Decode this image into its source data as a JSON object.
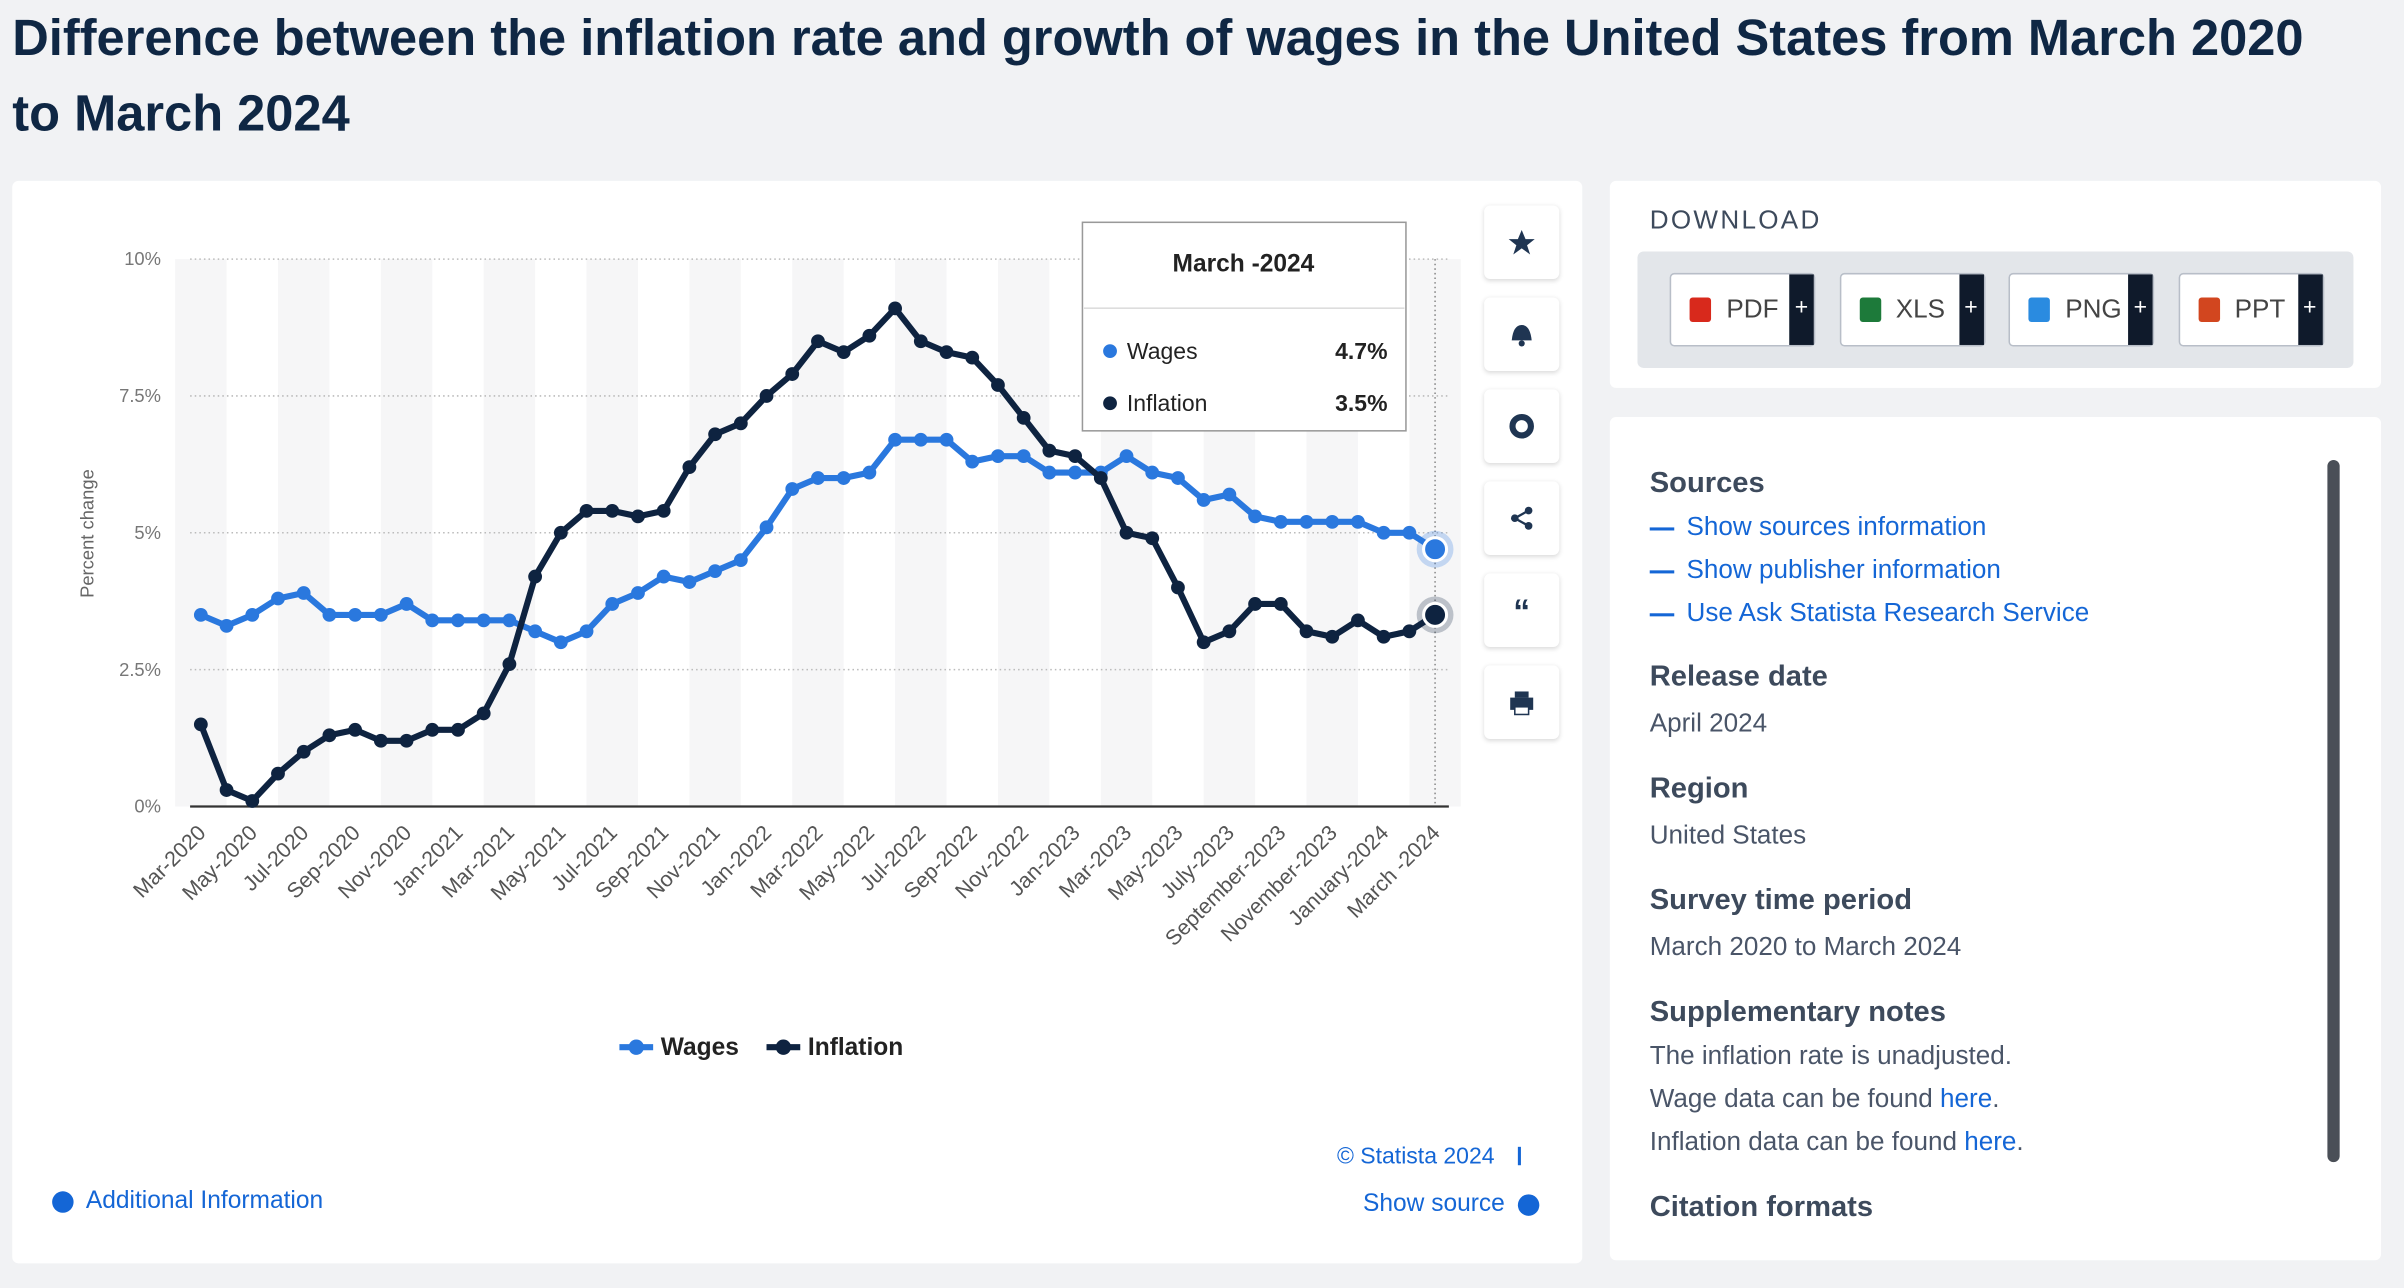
{
  "header": {
    "title": "Difference between the inflation rate and growth of wages in the United States from March 2020 to March 2024"
  },
  "chart_data": {
    "type": "line",
    "y_label": "Percent change",
    "categories": [
      "Mar-2020",
      null,
      "May-2020",
      null,
      "Jul-2020",
      null,
      "Sep-2020",
      null,
      "Nov-2020",
      null,
      "Jan-2021",
      null,
      "Mar-2021",
      null,
      "May-2021",
      null,
      "Jul-2021",
      null,
      "Sep-2021",
      null,
      "Nov-2021",
      null,
      "Jan-2022",
      null,
      "Mar-2022",
      null,
      "May-2022",
      null,
      "Jul-2022",
      null,
      "Sep-2022",
      null,
      "Nov-2022",
      null,
      "Jan-2023",
      null,
      "Mar-2023",
      null,
      "May-2023",
      null,
      "July-2023",
      null,
      "September-2023",
      null,
      "November-2023",
      null,
      "January-2024",
      null,
      "March -2024"
    ],
    "series": [
      {
        "name": "Wages",
        "color": "#2a78de",
        "values": [
          3.5,
          3.3,
          3.5,
          3.8,
          3.9,
          3.5,
          3.5,
          3.5,
          3.7,
          3.4,
          3.4,
          3.4,
          3.4,
          3.2,
          3.0,
          3.2,
          3.7,
          3.9,
          4.2,
          4.1,
          4.3,
          4.5,
          5.1,
          5.8,
          6.0,
          6.0,
          6.1,
          6.7,
          6.7,
          6.7,
          6.3,
          6.4,
          6.4,
          6.1,
          6.1,
          6.1,
          6.4,
          6.1,
          6.0,
          5.6,
          5.7,
          5.3,
          5.2,
          5.2,
          5.2,
          5.2,
          5.0,
          5.0,
          4.7
        ],
        "value_labels": [
          null,
          null,
          null,
          null,
          null,
          null,
          null,
          null,
          null,
          null,
          null,
          null,
          null,
          null,
          null,
          null,
          null,
          null,
          null,
          null,
          null,
          null,
          null,
          null,
          null,
          null,
          null,
          null,
          null,
          null,
          null,
          null,
          null,
          null,
          null,
          null,
          null,
          null,
          null,
          null,
          null,
          null,
          null,
          null,
          null,
          null,
          null,
          null,
          "4.7%"
        ]
      },
      {
        "name": "Inflation",
        "color": "#0e2340",
        "values": [
          1.5,
          0.3,
          0.1,
          0.6,
          1.0,
          1.3,
          1.4,
          1.2,
          1.2,
          1.4,
          1.4,
          1.7,
          2.6,
          4.2,
          5.0,
          5.4,
          5.4,
          5.3,
          5.4,
          6.2,
          6.8,
          7.0,
          7.5,
          7.9,
          8.5,
          8.3,
          8.6,
          9.1,
          8.5,
          8.3,
          8.2,
          7.7,
          7.1,
          6.5,
          6.4,
          6.0,
          5.0,
          4.9,
          4.0,
          3.0,
          3.2,
          3.7,
          3.7,
          3.2,
          3.1,
          3.4,
          3.1,
          3.2,
          3.5
        ],
        "value_labels": [
          null,
          null,
          null,
          null,
          null,
          null,
          null,
          null,
          null,
          null,
          null,
          null,
          null,
          null,
          null,
          null,
          null,
          null,
          null,
          null,
          null,
          null,
          null,
          null,
          null,
          null,
          null,
          null,
          null,
          null,
          null,
          null,
          null,
          null,
          null,
          null,
          null,
          null,
          null,
          null,
          null,
          null,
          null,
          null,
          null,
          null,
          null,
          null,
          "3.5%"
        ]
      }
    ],
    "ylim": [
      0,
      10
    ],
    "yticks": [
      {
        "value": 0,
        "label": "0%"
      },
      {
        "value": 2.5,
        "label": "2.5%"
      },
      {
        "value": 5,
        "label": "5%"
      },
      {
        "value": 7.5,
        "label": "7.5%"
      },
      {
        "value": 10,
        "label": "10%"
      }
    ],
    "grid": true,
    "legend": "bottom"
  },
  "chart_panel": {
    "credit": "© Statista 2024",
    "show_source": "Show source",
    "additional_info": "Additional Information"
  },
  "download": {
    "title": "DOWNLOAD",
    "formats": [
      "PDF",
      "XLS",
      "PNG",
      "PPT"
    ],
    "add": "+"
  },
  "details": {
    "sources_title": "Sources",
    "source_links": [
      "Show sources information",
      "Show publisher information",
      "Use Ask Statista Research Service"
    ],
    "release_date_title": "Release date",
    "release_date": "April 2024",
    "region_title": "Region",
    "region": "United States",
    "period_title": "Survey time period",
    "period": "March 2020 to March 2024",
    "notes_title": "Supplementary notes",
    "notes": [
      [
        "The inflation rate is unadjusted."
      ],
      [
        "Wage data can be found ",
        "here",
        "."
      ],
      [
        "Inflation data can be found ",
        "here",
        "."
      ]
    ],
    "citation_title": "Citation formats"
  }
}
